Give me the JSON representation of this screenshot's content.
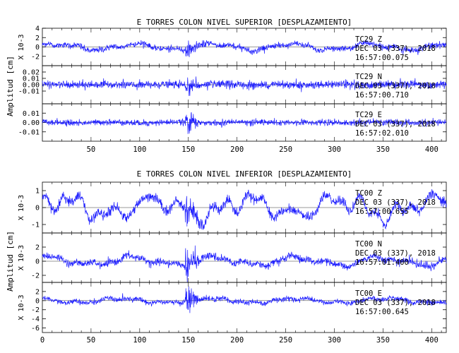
{
  "chart_data": [
    {
      "type": "line",
      "title": "E TORRES COLON NIVEL SUPERIOR [DESPLAZAMIENTO]",
      "xlabel": "",
      "ylabel": "Amplitud [cm]",
      "x_ticks": [
        50,
        100,
        150,
        200,
        250,
        300,
        350,
        400
      ],
      "xlim": [
        0,
        415
      ],
      "traces": [
        {
          "station": "TC29",
          "component": "Z",
          "date": "DEC 03 (337), 2018",
          "time": "16:57:00.075",
          "scale_label": "X 10-3",
          "ylim": [
            -4,
            4
          ],
          "yticks": [
            -2,
            0,
            2,
            4
          ],
          "ytick_labels": [
            "-2",
            "0",
            "2",
            "4"
          ],
          "color": "#1a1aff",
          "noise_amp": 0.35,
          "wander_amp": 0.45,
          "event_amp": 2.3,
          "wander_components": [
            {
              "period": 80,
              "amp": 0.6,
              "phase": 0.3
            },
            {
              "period": 33,
              "amp": 0.25,
              "phase": 1.2
            }
          ]
        },
        {
          "station": "TC29",
          "component": "N",
          "date": "DEC 03 (337), 2018",
          "time": "16:57:00.710",
          "scale_label": "",
          "ylim": [
            -0.03,
            0.03
          ],
          "yticks": [
            -0.01,
            0,
            0.01,
            0.02
          ],
          "ytick_labels": [
            "-0.01",
            "0.00",
            "0.01",
            "0.02"
          ],
          "color": "#1a1aff",
          "noise_amp": 0.0035,
          "wander_amp": 0.0008,
          "event_amp": 0.019,
          "wander_components": [
            {
              "period": 60,
              "amp": 0.0006,
              "phase": 0.8
            }
          ]
        },
        {
          "station": "TC29",
          "component": "E",
          "date": "DEC 03 (337), 2018",
          "time": "16:57:02.010",
          "scale_label": "",
          "ylim": [
            -0.02,
            0.02
          ],
          "yticks": [
            -0.01,
            0,
            0.01
          ],
          "ytick_labels": [
            "-0.01",
            "0.00",
            "0.01"
          ],
          "color": "#1a1aff",
          "noise_amp": 0.0018,
          "wander_amp": 0.0006,
          "event_amp": 0.016,
          "wander_components": [
            {
              "period": 70,
              "amp": 0.0005,
              "phase": 1.7
            }
          ]
        }
      ]
    },
    {
      "type": "line",
      "title": "E TORRES COLON NIVEL INFERIOR [DESPLAZAMIENTO]",
      "xlabel": "",
      "ylabel": "Amplitud [cm]",
      "x_ticks": [
        0,
        50,
        100,
        150,
        200,
        250,
        300,
        350,
        400
      ],
      "xlim": [
        0,
        415
      ],
      "traces": [
        {
          "station": "TC00",
          "component": "Z",
          "date": "DEC 03 (337), 2018",
          "time": "16:57:00.655",
          "scale_label": "X 10-3",
          "ylim": [
            -1.5,
            1.5
          ],
          "yticks": [
            -1,
            0,
            1
          ],
          "ytick_labels": [
            "-1",
            "0",
            "1"
          ],
          "color": "#1a1aff",
          "noise_amp": 0.16,
          "wander_amp": 0.5,
          "event_amp": 1.1,
          "wander_components": [
            {
              "period": 95,
              "amp": 0.45,
              "phase": 0.2
            },
            {
              "period": 37,
              "amp": 0.35,
              "phase": 2.1
            },
            {
              "period": 19,
              "amp": 0.2,
              "phase": 0.9
            }
          ]
        },
        {
          "station": "TC00",
          "component": "N",
          "date": "DEC 03 (337), 2018",
          "time": "16:57:01.400",
          "scale_label": "X 10-3",
          "ylim": [
            -3,
            4
          ],
          "yticks": [
            -2,
            0,
            2
          ],
          "ytick_labels": [
            "-2",
            "0",
            "2"
          ],
          "color": "#1a1aff",
          "noise_amp": 0.28,
          "wander_amp": 0.55,
          "event_amp": 3.2,
          "wander_components": [
            {
              "period": 85,
              "amp": 0.5,
              "phase": 1.0
            },
            {
              "period": 41,
              "amp": 0.25,
              "phase": 0.4
            }
          ]
        },
        {
          "station": "TC00",
          "component": "E",
          "date": "DEC 03 (337), 2018",
          "time": "16:57:00.645",
          "scale_label": "X 10-3",
          "ylim": [
            -7,
            4
          ],
          "yticks": [
            -6,
            -4,
            -2,
            0,
            2
          ],
          "ytick_labels": [
            "-6",
            "-4",
            "-2",
            "0",
            "2"
          ],
          "color": "#1a1aff",
          "noise_amp": 0.3,
          "wander_amp": 0.5,
          "event_amp": 4.0,
          "wander_components": [
            {
              "period": 90,
              "amp": 0.45,
              "phase": 2.2
            },
            {
              "period": 30,
              "amp": 0.2,
              "phase": 0.6
            }
          ]
        }
      ]
    }
  ]
}
